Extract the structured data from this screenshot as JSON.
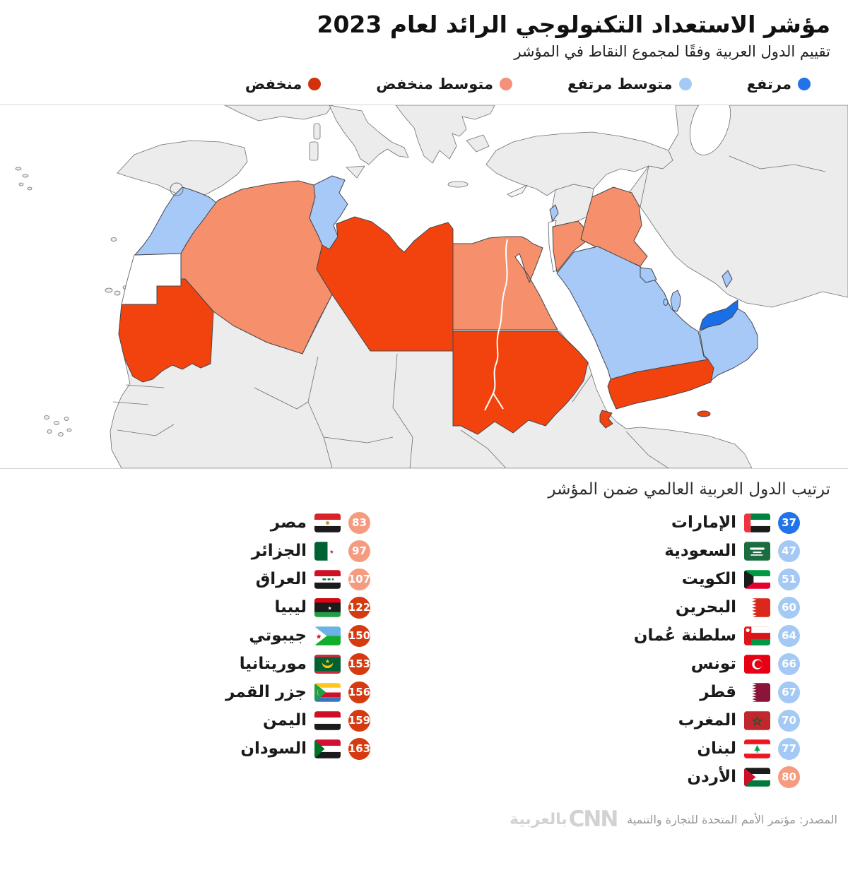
{
  "header": {
    "title": "مؤشر الاستعداد التكنولوجي الرائد لعام 2023",
    "subtitle": "تقييم الدول العربية وفقًا لمجموع النقاط في المؤشر"
  },
  "colors": {
    "high": "#2272ea",
    "medium_high": "#a5c9f5",
    "medium_low": "#f59c80",
    "low": "#d53a10",
    "map_high": "#1a6fe8",
    "map_medium_high": "#a7c9f7",
    "map_medium_low": "#f58f6c",
    "map_low": "#f2430f",
    "legend_low": "#d2310b",
    "legend_medium_low": "#f5907a"
  },
  "legend": {
    "items": [
      {
        "label": "مرتفع",
        "level": "high"
      },
      {
        "label": "متوسط مرتفع",
        "level": "medium_high"
      },
      {
        "label": "متوسط منخفض",
        "level": "medium_low"
      },
      {
        "label": "منخفض",
        "level": "low"
      }
    ]
  },
  "map": {
    "categories": {
      "المغرب": "متوسط مرتفع",
      "تونس": "متوسط مرتفع",
      "الجزائر": "متوسط منخفض",
      "ليبيا": "منخفض",
      "مصر": "متوسط منخفض",
      "موريتانيا": "منخفض",
      "السودان": "منخفض",
      "اليمن": "منخفض",
      "جيبوتي": "منخفض",
      "السعودية": "متوسط مرتفع",
      "الإمارات": "مرتفع",
      "عُمان": "متوسط مرتفع",
      "قطر": "متوسط مرتفع",
      "الكويت": "متوسط مرتفع",
      "البحرين": "متوسط مرتفع",
      "الأردن": "متوسط منخفض",
      "العراق": "متوسط منخفض",
      "لبنان": "متوسط مرتفع"
    }
  },
  "ranking": {
    "heading": "ترتيب الدول العربية العالمي ضمن المؤشر",
    "right_column": [
      {
        "country": "الإمارات",
        "rank": "37",
        "flag": "uae",
        "level": "high"
      },
      {
        "country": "السعودية",
        "rank": "47",
        "flag": "saudi",
        "level": "medium_high"
      },
      {
        "country": "الكويت",
        "rank": "51",
        "flag": "kuwait",
        "level": "medium_high"
      },
      {
        "country": "البحرين",
        "rank": "60",
        "flag": "bahrain",
        "level": "medium_high"
      },
      {
        "country": "سلطنة عُمان",
        "rank": "64",
        "flag": "oman",
        "level": "medium_high"
      },
      {
        "country": "تونس",
        "rank": "66",
        "flag": "tunisia",
        "level": "medium_high"
      },
      {
        "country": "قطر",
        "rank": "67",
        "flag": "qatar",
        "level": "medium_high"
      },
      {
        "country": "المغرب",
        "rank": "70",
        "flag": "morocco",
        "level": "medium_high"
      },
      {
        "country": "لبنان",
        "rank": "77",
        "flag": "lebanon",
        "level": "medium_high"
      },
      {
        "country": "الأردن",
        "rank": "80",
        "flag": "jordan",
        "level": "medium_low"
      }
    ],
    "left_column": [
      {
        "country": "مصر",
        "rank": "83",
        "flag": "egypt",
        "level": "medium_low"
      },
      {
        "country": "الجزائر",
        "rank": "97",
        "flag": "algeria",
        "level": "medium_low"
      },
      {
        "country": "العراق",
        "rank": "107",
        "flag": "iraq",
        "level": "medium_low"
      },
      {
        "country": "ليبيا",
        "rank": "122",
        "flag": "libya",
        "level": "low"
      },
      {
        "country": "جيبوتي",
        "rank": "150",
        "flag": "djibouti",
        "level": "low"
      },
      {
        "country": "موريتانيا",
        "rank": "153",
        "flag": "mauritania",
        "level": "low"
      },
      {
        "country": "جزر القمر",
        "rank": "156",
        "flag": "comoros",
        "level": "low"
      },
      {
        "country": "اليمن",
        "rank": "159",
        "flag": "yemen",
        "level": "low"
      },
      {
        "country": "السودان",
        "rank": "163",
        "flag": "sudan",
        "level": "low"
      }
    ]
  },
  "footer": {
    "source": "المصدر: مؤتمر الأمم المتحدة للتجارة والتنمية",
    "logo": {
      "cnn": "CNN",
      "arabic": "بالعربية"
    }
  }
}
